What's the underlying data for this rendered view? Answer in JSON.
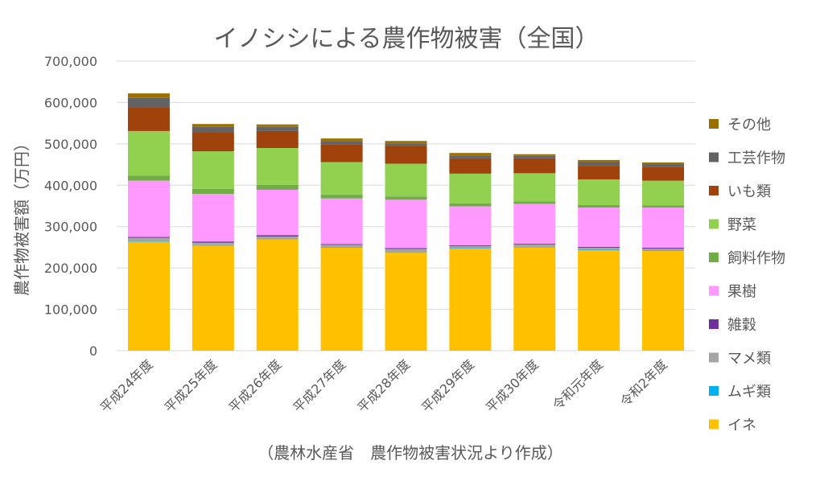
{
  "chart_data": {
    "type": "bar",
    "stacked": true,
    "title": "イノシシによる農作物被害（全国）",
    "ylabel": "農作物被害額（万円）",
    "xlabel": "",
    "source": "（農林水産省　農作物被害状況より作成）",
    "ylim": [
      0,
      700000
    ],
    "yticks": [
      0,
      100000,
      200000,
      300000,
      400000,
      500000,
      600000,
      700000
    ],
    "ytick_labels": [
      "0",
      "100,000",
      "200,000",
      "300,000",
      "400,000",
      "500,000",
      "600,000",
      "700,000"
    ],
    "grid": true,
    "legend_position": "right",
    "categories": [
      "平成24年度",
      "平成25年度",
      "平成26年度",
      "平成27年度",
      "平成28年度",
      "平成29年度",
      "平成30年度",
      "令和元年度",
      "令和2年度"
    ],
    "series": [
      {
        "name": "イネ",
        "color": "#FFC000",
        "values": [
          263000,
          254000,
          269000,
          249000,
          237000,
          247000,
          250000,
          243000,
          241000
        ]
      },
      {
        "name": "ムギ類",
        "color": "#00B0F0",
        "values": [
          1000,
          1000,
          1000,
          1000,
          1000,
          1000,
          1000,
          1000,
          1000
        ]
      },
      {
        "name": "マメ類",
        "color": "#A5A5A5",
        "values": [
          9000,
          6000,
          6000,
          6000,
          8000,
          5000,
          6000,
          5000,
          5000
        ]
      },
      {
        "name": "雑穀",
        "color": "#7030A0",
        "values": [
          2000,
          3000,
          3000,
          2000,
          2000,
          2000,
          2000,
          2000,
          2000
        ]
      },
      {
        "name": "果樹",
        "color": "#FF99FF",
        "values": [
          136000,
          115000,
          110000,
          110000,
          117000,
          94000,
          96000,
          95000,
          97000
        ]
      },
      {
        "name": "飼料作物",
        "color": "#70AD47",
        "values": [
          12000,
          12000,
          12000,
          9000,
          8000,
          7000,
          6000,
          6000,
          5000
        ]
      },
      {
        "name": "野菜",
        "color": "#92D050",
        "values": [
          108000,
          91000,
          89000,
          79000,
          79000,
          72000,
          68000,
          62000,
          60000
        ]
      },
      {
        "name": "いも類",
        "color": "#A0420B",
        "values": [
          58000,
          46000,
          41000,
          43000,
          43000,
          37000,
          36000,
          33000,
          33000
        ]
      },
      {
        "name": "工芸作物",
        "color": "#636363",
        "values": [
          22000,
          14000,
          10000,
          8000,
          6000,
          7000,
          6000,
          9000,
          7000
        ]
      },
      {
        "name": "その他",
        "color": "#9C7000",
        "values": [
          11000,
          6000,
          6000,
          6000,
          6000,
          6000,
          4000,
          5000,
          4000
        ]
      }
    ]
  }
}
